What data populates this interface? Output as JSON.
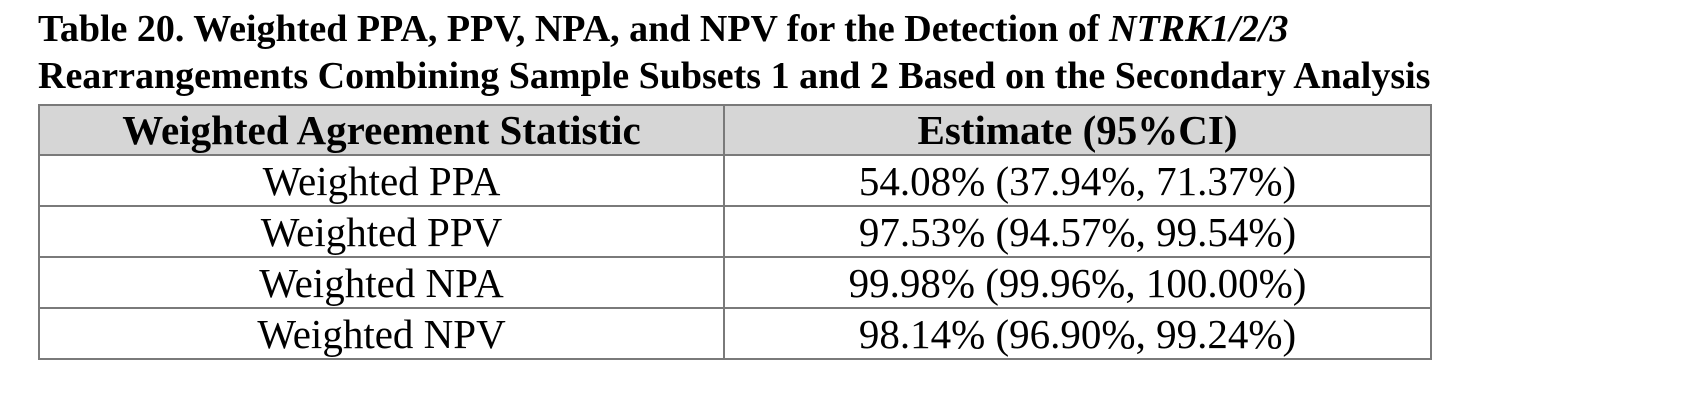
{
  "caption": {
    "line1_prefix": "Table 20. Weighted PPA, PPV, NPA, and NPV for the Detection of ",
    "line1_italic": "NTRK1/2/3",
    "line2": "Rearrangements Combining Sample Subsets 1 and 2 Based on the Secondary Analysis"
  },
  "table": {
    "headers": [
      "Weighted Agreement Statistic",
      "Estimate (95%CI)"
    ],
    "rows": [
      [
        "Weighted PPA",
        "54.08% (37.94%, 71.37%)"
      ],
      [
        "Weighted PPV",
        "97.53% (94.57%, 99.54%)"
      ],
      [
        "Weighted NPA",
        "99.98% (99.96%, 100.00%)"
      ],
      [
        "Weighted NPV",
        "98.14% (96.90%, 99.24%)"
      ]
    ]
  }
}
